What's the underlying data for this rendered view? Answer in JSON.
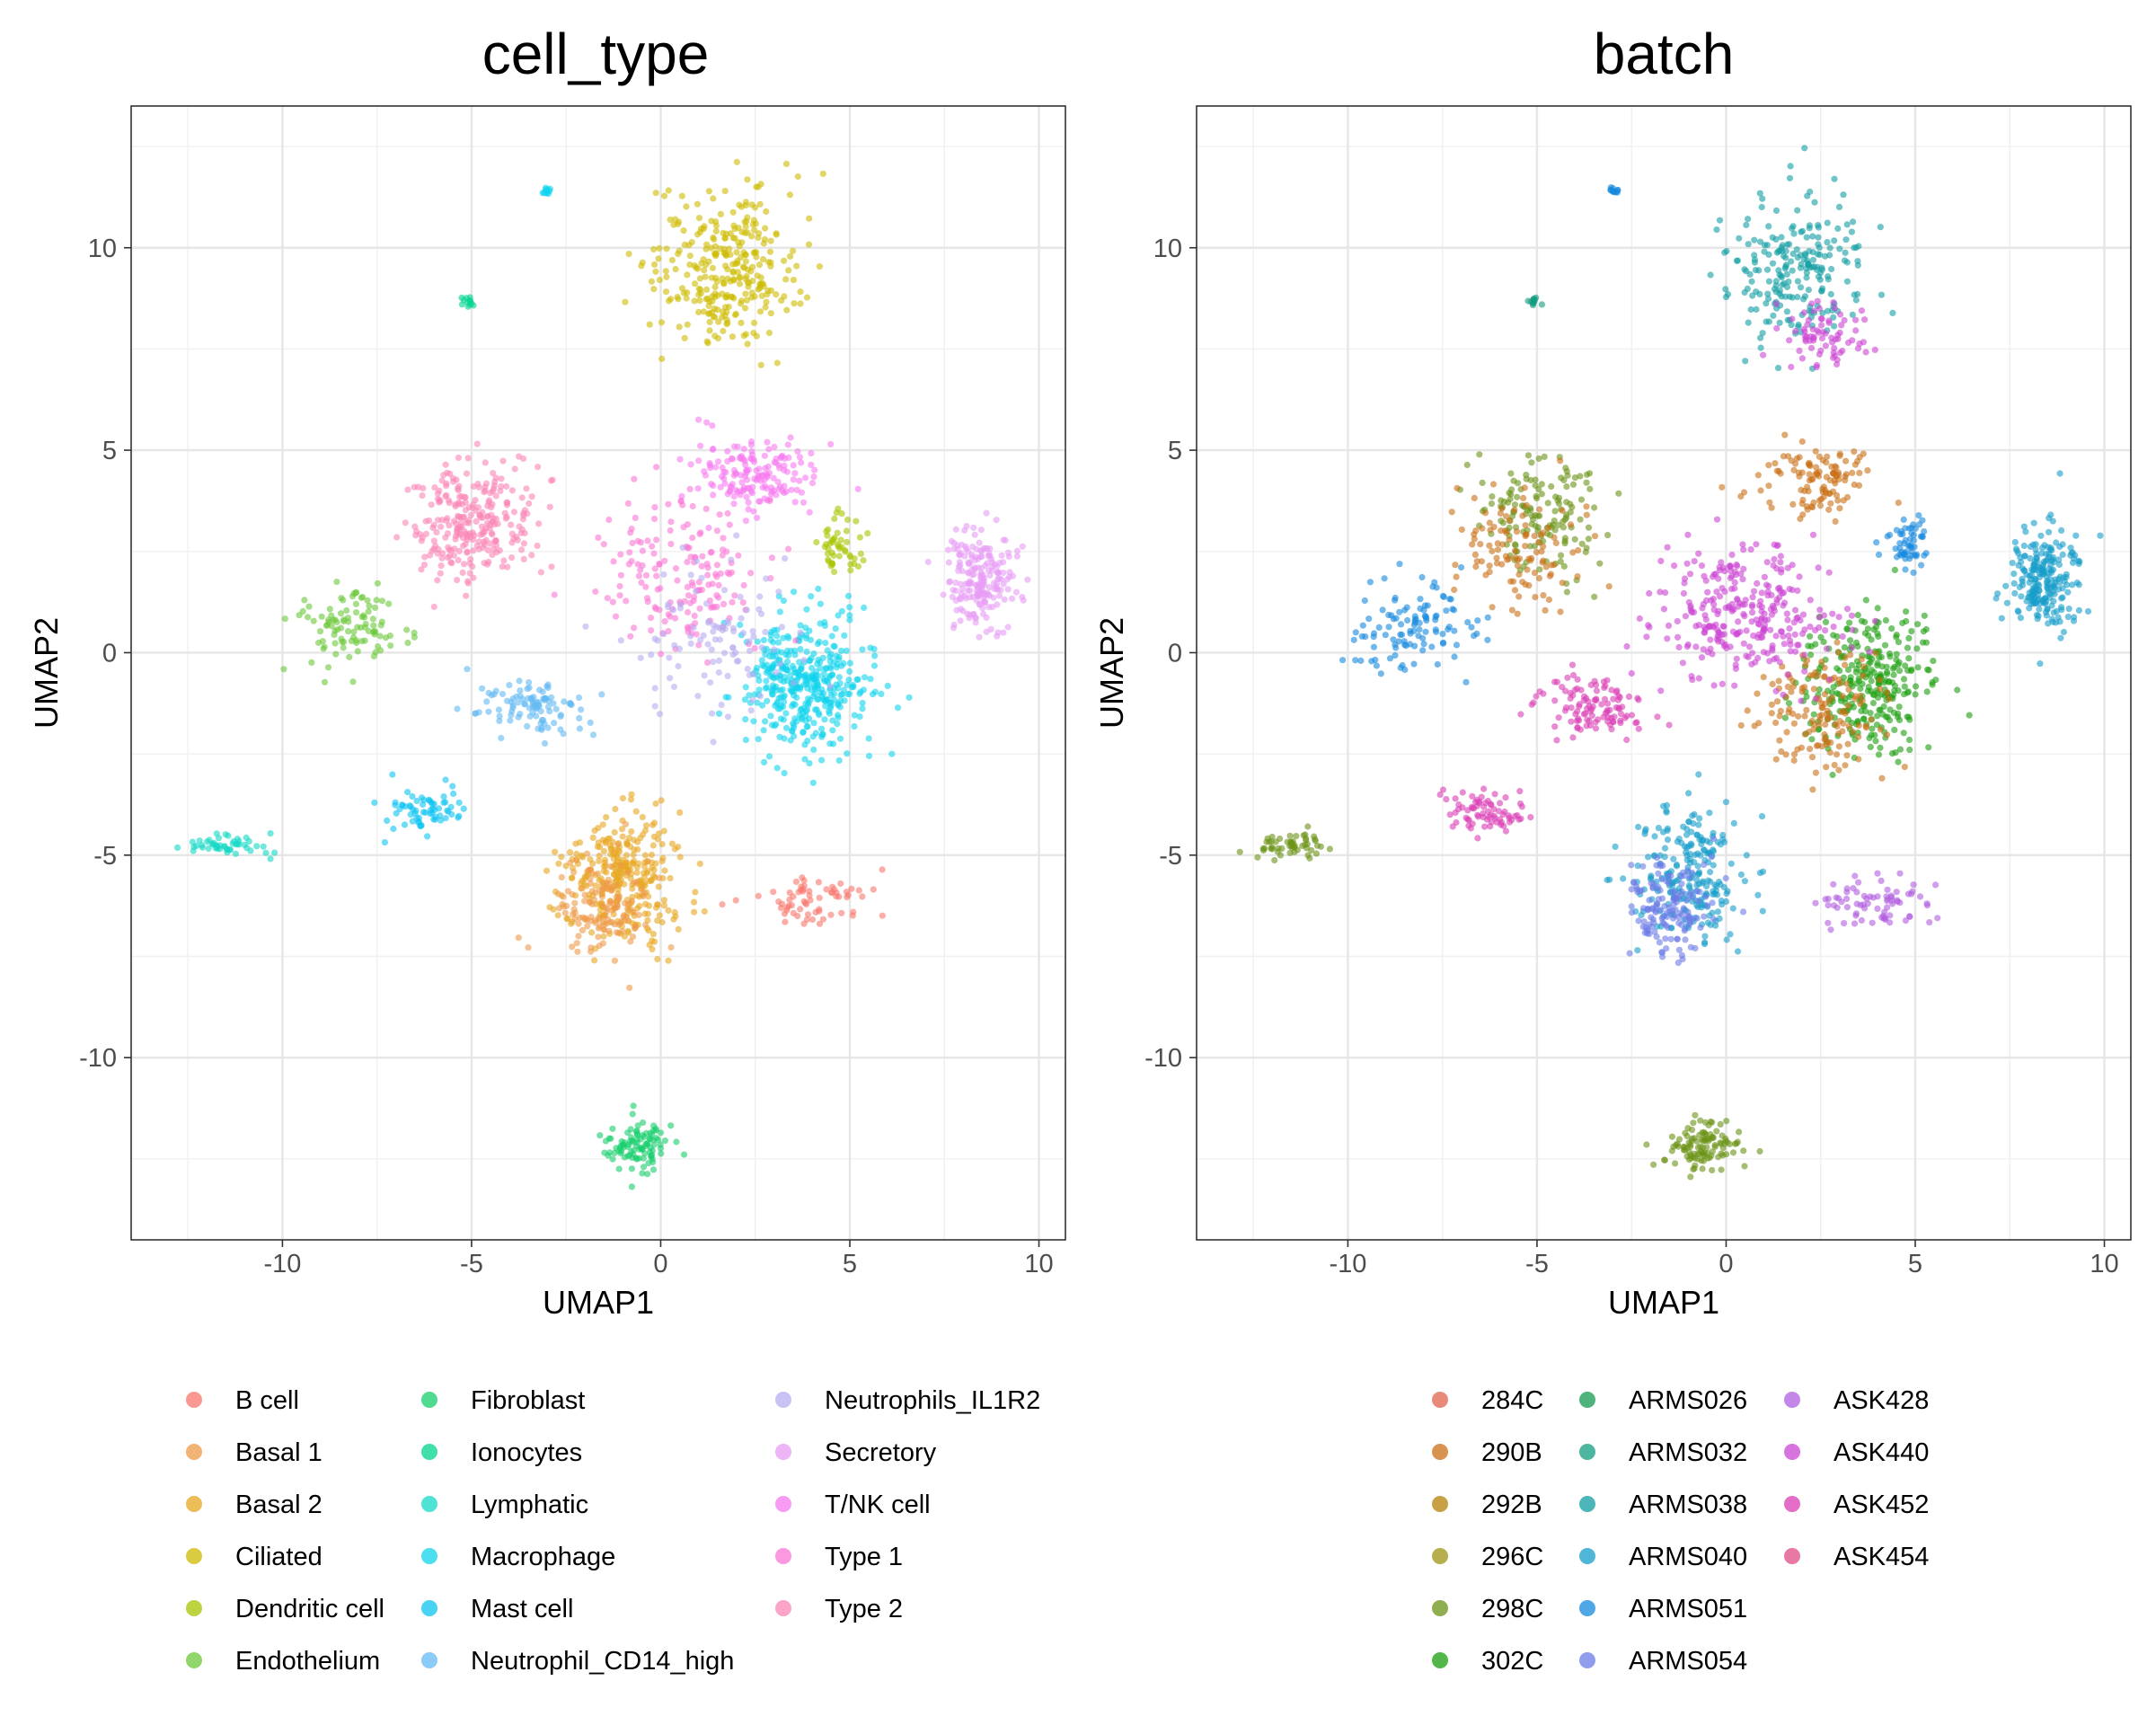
{
  "chart_data": [
    {
      "type": "scatter",
      "title": "cell_type",
      "xlabel": "UMAP1",
      "ylabel": "UMAP2",
      "xlim": [
        -14,
        10.7
      ],
      "ylim": [
        -14.5,
        13.5
      ],
      "xticks": [
        -10,
        -5,
        0,
        5,
        10
      ],
      "yticks": [
        -10,
        -5,
        0,
        5,
        10
      ],
      "grid": true,
      "legend_position": "bottom",
      "legend_columns": 3,
      "series": [
        {
          "name": "B cell",
          "color": "#F8766D"
        },
        {
          "name": "Basal 1",
          "color": "#EE9A4A"
        },
        {
          "name": "Basal 2",
          "color": "#E7A71F"
        },
        {
          "name": "Ciliated",
          "color": "#CDBB00"
        },
        {
          "name": "Dendritic cell",
          "color": "#A8C400"
        },
        {
          "name": "Endothelium",
          "color": "#6CC83A"
        },
        {
          "name": "Fibroblast",
          "color": "#17CF6C"
        },
        {
          "name": "Ionocytes",
          "color": "#00D38F"
        },
        {
          "name": "Lymphatic",
          "color": "#13D9C5"
        },
        {
          "name": "Macrophage",
          "color": "#10D4EC"
        },
        {
          "name": "Mast cell",
          "color": "#0DC3F2"
        },
        {
          "name": "Neutrophil_CD14_high",
          "color": "#63B9F4"
        },
        {
          "name": "Neutrophils_IL1R2",
          "color": "#B7AEF0"
        },
        {
          "name": "Secretory",
          "color": "#E79CF5"
        },
        {
          "name": "T/NK cell",
          "color": "#F67AF0"
        },
        {
          "name": "Type 1",
          "color": "#FB76D5"
        },
        {
          "name": "Type 2",
          "color": "#FA86B5"
        }
      ],
      "clusters": [
        {
          "label": "Ciliated",
          "center": [
            1.7,
            9.5
          ],
          "spread": [
            1.6,
            1.6
          ],
          "weight": 9
        },
        {
          "label": "Type 2",
          "center": [
            -5.0,
            3.3
          ],
          "spread": [
            1.4,
            1.2
          ],
          "weight": 8
        },
        {
          "label": "Secretory",
          "center": [
            8.4,
            1.8
          ],
          "spread": [
            0.8,
            1.0
          ],
          "weight": 6
        },
        {
          "label": "Basal 2",
          "center": [
            -1.0,
            -5.6
          ],
          "spread": [
            1.3,
            1.4
          ],
          "weight": 9
        },
        {
          "label": "Basal 1",
          "center": [
            -1.5,
            -6.3
          ],
          "spread": [
            1.0,
            1.0
          ],
          "weight": 4
        },
        {
          "label": "Macrophage",
          "center": [
            3.8,
            -0.8
          ],
          "spread": [
            1.4,
            1.4
          ],
          "weight": 12
        },
        {
          "label": "T/NK cell",
          "center": [
            2.5,
            4.3
          ],
          "spread": [
            1.3,
            0.8
          ],
          "weight": 5
        },
        {
          "label": "Fibroblast",
          "center": [
            -0.6,
            -12.2
          ],
          "spread": [
            0.8,
            0.5
          ],
          "weight": 3
        },
        {
          "label": "Lymphatic",
          "center": [
            -11.6,
            -4.8
          ],
          "spread": [
            0.9,
            0.25
          ],
          "weight": 1.5
        },
        {
          "label": "Mast cell",
          "center": [
            -6.3,
            -3.9
          ],
          "spread": [
            0.9,
            0.45
          ],
          "weight": 2
        },
        {
          "label": "Endothelium",
          "center": [
            -8.2,
            0.6
          ],
          "spread": [
            1.3,
            0.9
          ],
          "weight": 3
        },
        {
          "label": "Dendritic cell",
          "center": [
            4.8,
            2.6
          ],
          "spread": [
            0.5,
            0.6
          ],
          "weight": 1.5
        },
        {
          "label": "Neutrophil_CD14_high",
          "center": [
            -3.5,
            -1.3
          ],
          "spread": [
            1.2,
            0.6
          ],
          "weight": 3
        },
        {
          "label": "Type 1",
          "center": [
            0.5,
            2.0
          ],
          "spread": [
            1.6,
            1.6
          ],
          "weight": 5
        },
        {
          "label": "B cell",
          "center": [
            4.0,
            -6.2
          ],
          "spread": [
            1.3,
            0.5
          ],
          "weight": 2
        },
        {
          "label": "Ionocytes",
          "center": [
            -5.1,
            8.7
          ],
          "spread": [
            0.12,
            0.1
          ],
          "weight": 0.3
        },
        {
          "label": "Macrophage",
          "center": [
            -3.0,
            11.4
          ],
          "spread": [
            0.1,
            0.08
          ],
          "weight": 0.2
        },
        {
          "label": "Neutrophils_IL1R2",
          "center": [
            1.5,
            0.2
          ],
          "spread": [
            2.0,
            1.6
          ],
          "weight": 3
        }
      ]
    },
    {
      "type": "scatter",
      "title": "batch",
      "xlabel": "UMAP1",
      "ylabel": "UMAP2",
      "xlim": [
        -14,
        10.7
      ],
      "ylim": [
        -14.5,
        13.5
      ],
      "xticks": [
        -10,
        -5,
        0,
        5,
        10
      ],
      "yticks": [
        -10,
        -5,
        0,
        5,
        10
      ],
      "grid": true,
      "legend_position": "bottom",
      "legend_columns": 3,
      "series": [
        {
          "name": "284C",
          "color": "#E0614C"
        },
        {
          "name": "290B",
          "color": "#C97015"
        },
        {
          "name": "292B",
          "color": "#B5820A"
        },
        {
          "name": "296C",
          "color": "#9E9312"
        },
        {
          "name": "298C",
          "color": "#6A9316"
        },
        {
          "name": "302C",
          "color": "#1A9E0E"
        },
        {
          "name": "ARMS026",
          "color": "#149A50"
        },
        {
          "name": "ARMS032",
          "color": "#139C80"
        },
        {
          "name": "ARMS038",
          "color": "#129EA3"
        },
        {
          "name": "ARMS040",
          "color": "#159DCA"
        },
        {
          "name": "ARMS051",
          "color": "#1689DD"
        },
        {
          "name": "ARMS054",
          "color": "#6A7CE6"
        },
        {
          "name": "ASK428",
          "color": "#B05EE0"
        },
        {
          "name": "ASK440",
          "color": "#CC45D3"
        },
        {
          "name": "ASK452",
          "color": "#DB3EB4"
        },
        {
          "name": "ASK454",
          "color": "#E04B86"
        }
      ],
      "clusters": [
        {
          "label": "ARMS038",
          "center": [
            1.7,
            9.5
          ],
          "spread": [
            1.6,
            1.6
          ],
          "weight": 6
        },
        {
          "label": "ASK440",
          "center": [
            2.6,
            7.8
          ],
          "spread": [
            1.0,
            0.8
          ],
          "weight": 2
        },
        {
          "label": "298C",
          "center": [
            -5.0,
            3.3
          ],
          "spread": [
            1.4,
            1.2
          ],
          "weight": 4
        },
        {
          "label": "290B",
          "center": [
            -5.5,
            2.5
          ],
          "spread": [
            1.4,
            1.2
          ],
          "weight": 3
        },
        {
          "label": "ARMS040",
          "center": [
            8.4,
            1.8
          ],
          "spread": [
            0.8,
            1.0
          ],
          "weight": 6
        },
        {
          "label": "ARMS040",
          "center": [
            -1.0,
            -5.6
          ],
          "spread": [
            1.3,
            1.4
          ],
          "weight": 6
        },
        {
          "label": "ARMS054",
          "center": [
            -1.5,
            -6.3
          ],
          "spread": [
            1.0,
            1.0
          ],
          "weight": 4
        },
        {
          "label": "302C",
          "center": [
            3.8,
            -0.8
          ],
          "spread": [
            1.4,
            1.4
          ],
          "weight": 8
        },
        {
          "label": "290B",
          "center": [
            2.5,
            -1.5
          ],
          "spread": [
            1.4,
            1.3
          ],
          "weight": 4
        },
        {
          "label": "ASK440",
          "center": [
            0.5,
            1.0
          ],
          "spread": [
            2.0,
            1.4
          ],
          "weight": 8
        },
        {
          "label": "290B",
          "center": [
            2.5,
            4.3
          ],
          "spread": [
            1.3,
            0.8
          ],
          "weight": 3
        },
        {
          "label": "298C",
          "center": [
            -0.6,
            -12.2
          ],
          "spread": [
            0.8,
            0.5
          ],
          "weight": 3
        },
        {
          "label": "298C",
          "center": [
            -11.6,
            -4.8
          ],
          "spread": [
            0.9,
            0.25
          ],
          "weight": 1.5
        },
        {
          "label": "ASK452",
          "center": [
            -6.3,
            -3.9
          ],
          "spread": [
            0.9,
            0.45
          ],
          "weight": 2
        },
        {
          "label": "ARMS051",
          "center": [
            -8.2,
            0.6
          ],
          "spread": [
            1.3,
            0.9
          ],
          "weight": 3
        },
        {
          "label": "ARMS051",
          "center": [
            4.8,
            2.6
          ],
          "spread": [
            0.5,
            0.6
          ],
          "weight": 1.5
        },
        {
          "label": "ASK452",
          "center": [
            -3.5,
            -1.3
          ],
          "spread": [
            1.2,
            0.6
          ],
          "weight": 3
        },
        {
          "label": "ASK428",
          "center": [
            4.0,
            -6.2
          ],
          "spread": [
            1.3,
            0.5
          ],
          "weight": 2
        },
        {
          "label": "ARMS032",
          "center": [
            -5.1,
            8.7
          ],
          "spread": [
            0.12,
            0.1
          ],
          "weight": 0.3
        },
        {
          "label": "ARMS051",
          "center": [
            -3.0,
            11.4
          ],
          "spread": [
            0.1,
            0.08
          ],
          "weight": 0.2
        }
      ]
    }
  ]
}
